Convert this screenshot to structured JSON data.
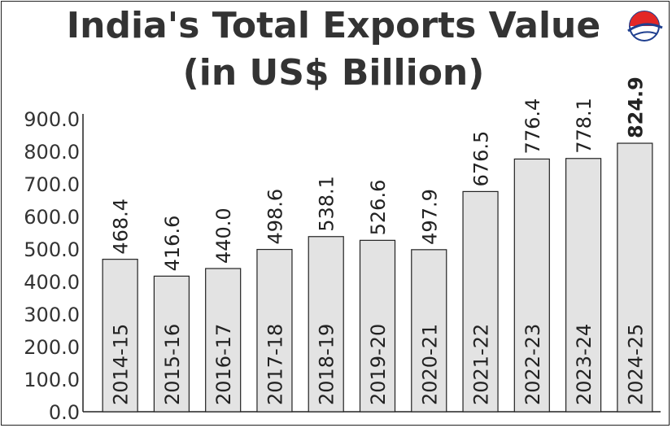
{
  "colors": {
    "bar_fill": "#e3e3e3",
    "bar_stroke": "#222222",
    "text": "#333333",
    "logo_red": "#e32727",
    "logo_blue": "#1f3f8f"
  },
  "logo": {
    "icon": "globe-logo-icon"
  },
  "chart_data": {
    "type": "bar",
    "title": "India's Total Exports Value",
    "subtitle": "(in US$ Billion)",
    "xlabel": "",
    "ylabel": "",
    "categories": [
      "2014-15",
      "2015-16",
      "2016-17",
      "2017-18",
      "2018-19",
      "2019-20",
      "2020-21",
      "2021-22",
      "2022-23",
      "2023-24",
      "2024-25"
    ],
    "values": [
      468.4,
      416.6,
      440.0,
      498.6,
      538.1,
      526.6,
      497.9,
      676.5,
      776.4,
      778.1,
      824.9
    ],
    "value_labels": [
      "468.4",
      "416.6",
      "440.0",
      "498.6",
      "538.1",
      "526.6",
      "497.9",
      "676.5",
      "776.4",
      "778.1",
      "824.9"
    ],
    "highlight_index": 10,
    "ylim": [
      0,
      900
    ],
    "yticks": [
      0,
      100,
      200,
      300,
      400,
      500,
      600,
      700,
      800,
      900
    ],
    "ytick_labels": [
      "0.0",
      "100.0",
      "200.0",
      "300.0",
      "400.0",
      "500.0",
      "600.0",
      "700.0",
      "800.0",
      "900.0"
    ],
    "grid": false,
    "legend": "none"
  }
}
